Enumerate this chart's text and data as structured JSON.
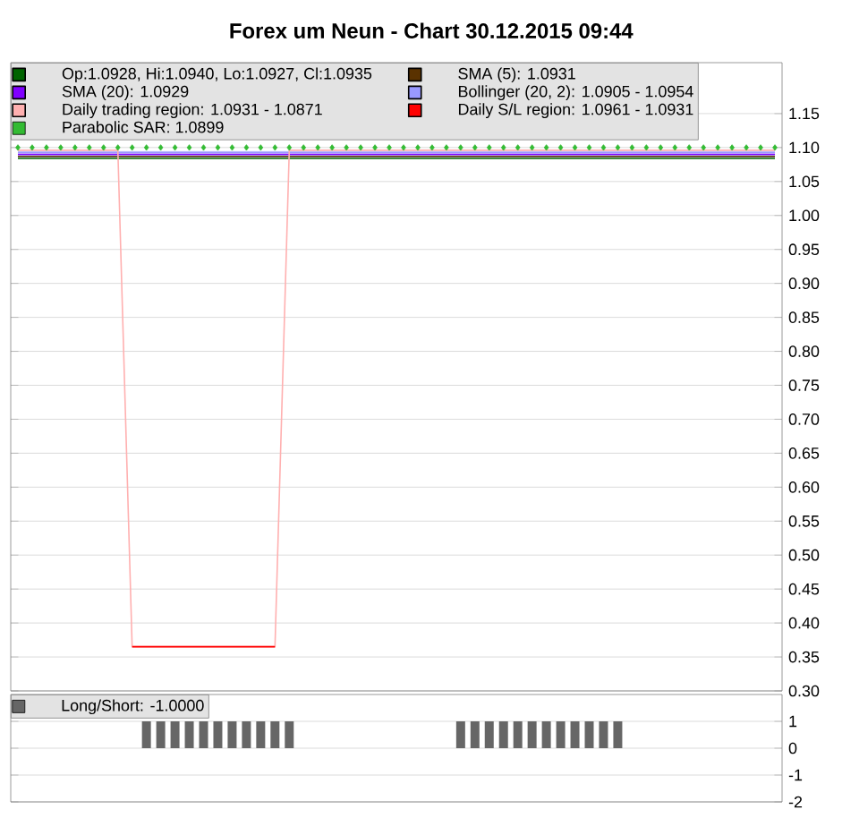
{
  "chart_data": [
    {
      "type": "line",
      "title": "Forex um Neun - Chart 30.12.2015 09:44",
      "categories": [
        null,
        null,
        null,
        null,
        null,
        null,
        null,
        null,
        null,
        null,
        null,
        null,
        null,
        null,
        null,
        null,
        null,
        null,
        null,
        null,
        null,
        null,
        null,
        null,
        null,
        null,
        null,
        null,
        null,
        null,
        null,
        null,
        null,
        null,
        null,
        null,
        null,
        null,
        null,
        null,
        null,
        null,
        null,
        null,
        null,
        null,
        null,
        null,
        null,
        null,
        null,
        null,
        null,
        null
      ],
      "series": [
        {
          "name": "Op:1.0928, Hi:1.0940, Lo:1.0927, Cl:1.0935",
          "color": "#006400",
          "values": [
            1.084,
            1.084,
            1.084,
            1.084,
            1.084,
            1.084,
            1.084,
            1.084,
            1.084,
            1.084,
            1.084,
            1.084,
            1.084,
            1.084,
            1.084,
            1.084,
            1.084,
            1.084,
            1.084,
            1.084,
            1.084,
            1.084,
            1.084,
            1.084,
            1.084,
            1.084,
            1.084,
            1.084,
            1.084,
            1.084,
            1.084,
            1.084,
            1.084,
            1.084,
            1.084,
            1.084,
            1.084,
            1.084,
            1.084,
            1.084,
            1.084,
            1.084,
            1.084,
            1.084,
            1.084,
            1.084,
            1.084,
            1.084,
            1.084,
            1.084,
            1.084,
            1.084,
            1.084,
            1.084
          ]
        },
        {
          "name": "SMA (5): 1.0931",
          "color": "#5a3200",
          "values": [
            1.087,
            1.087,
            1.087,
            1.087,
            1.087,
            1.087,
            1.087,
            1.087,
            1.087,
            1.087,
            1.087,
            1.087,
            1.087,
            1.087,
            1.087,
            1.087,
            1.087,
            1.087,
            1.087,
            1.087,
            1.087,
            1.087,
            1.087,
            1.087,
            1.087,
            1.087,
            1.087,
            1.087,
            1.087,
            1.087,
            1.087,
            1.087,
            1.087,
            1.087,
            1.087,
            1.087,
            1.087,
            1.087,
            1.087,
            1.087,
            1.087,
            1.087,
            1.087,
            1.087,
            1.087,
            1.087,
            1.087,
            1.087,
            1.087,
            1.087,
            1.087,
            1.087,
            1.087,
            1.087
          ]
        },
        {
          "name": "SMA (20): 1.0929",
          "color": "#8000ff",
          "values": [
            1.09,
            1.09,
            1.09,
            1.09,
            1.09,
            1.09,
            1.09,
            1.09,
            1.09,
            1.09,
            1.09,
            1.09,
            1.09,
            1.09,
            1.09,
            1.09,
            1.09,
            1.09,
            1.09,
            1.09,
            1.09,
            1.09,
            1.09,
            1.09,
            1.09,
            1.09,
            1.09,
            1.09,
            1.09,
            1.09,
            1.09,
            1.09,
            1.09,
            1.09,
            1.09,
            1.09,
            1.09,
            1.09,
            1.09,
            1.09,
            1.09,
            1.09,
            1.09,
            1.09,
            1.09,
            1.09,
            1.09,
            1.09,
            1.09,
            1.09,
            1.09,
            1.09,
            1.09,
            1.09
          ]
        },
        {
          "name": "Bollinger (20, 2): 1.0905 - 1.0954",
          "color": "#9999ff",
          "values": [
            1.093,
            1.093,
            1.093,
            1.093,
            1.093,
            1.093,
            1.093,
            1.093,
            1.093,
            1.093,
            1.093,
            1.093,
            1.093,
            1.093,
            1.093,
            1.093,
            1.093,
            1.093,
            1.093,
            1.093,
            1.093,
            1.093,
            1.093,
            1.093,
            1.093,
            1.093,
            1.093,
            1.093,
            1.093,
            1.093,
            1.093,
            1.093,
            1.093,
            1.093,
            1.093,
            1.093,
            1.093,
            1.093,
            1.093,
            1.093,
            1.093,
            1.093,
            1.093,
            1.093,
            1.093,
            1.093,
            1.093,
            1.093,
            1.093,
            1.093,
            1.093,
            1.093,
            1.093,
            1.093
          ],
          "lower": [
            1.085,
            1.085,
            1.085,
            1.085,
            1.085,
            1.085,
            1.085,
            1.085,
            1.085,
            1.085,
            1.085,
            1.085,
            1.085,
            1.085,
            1.085,
            1.085,
            1.085,
            1.085,
            1.085,
            1.085,
            1.085,
            1.085,
            1.085,
            1.085,
            1.085,
            1.085,
            1.085,
            1.085,
            1.085,
            1.085,
            1.085,
            1.085,
            1.085,
            1.085,
            1.085,
            1.085,
            1.085,
            1.085,
            1.085,
            1.085,
            1.085,
            1.085,
            1.085,
            1.085,
            1.085,
            1.085,
            1.085,
            1.085,
            1.085,
            1.085,
            1.085,
            1.085,
            1.085,
            1.085
          ],
          "upper": [
            1.095,
            1.095,
            1.095,
            1.095,
            1.095,
            1.095,
            1.095,
            1.095,
            1.095,
            1.095,
            1.095,
            1.095,
            1.095,
            1.095,
            1.095,
            1.095,
            1.095,
            1.095,
            1.095,
            1.095,
            1.095,
            1.095,
            1.095,
            1.095,
            1.095,
            1.095,
            1.095,
            1.095,
            1.095,
            1.095,
            1.095,
            1.095,
            1.095,
            1.095,
            1.095,
            1.095,
            1.095,
            1.095,
            1.095,
            1.095,
            1.095,
            1.095,
            1.095,
            1.095,
            1.095,
            1.095,
            1.095,
            1.095,
            1.095,
            1.095,
            1.095,
            1.095,
            1.095,
            1.095
          ]
        },
        {
          "name": "Daily trading region: 1.0931 - 1.0871",
          "color": "#ffb0b0",
          "values": [
            1.096,
            1.096,
            1.096,
            1.096,
            1.096,
            1.096,
            1.096,
            1.096,
            0.365,
            0.365,
            0.365,
            0.365,
            0.365,
            0.365,
            0.365,
            0.365,
            0.365,
            0.365,
            0.365,
            1.096,
            1.096,
            1.096,
            1.096,
            1.096,
            1.096,
            1.096,
            1.096,
            1.096,
            1.096,
            1.096,
            1.096,
            1.096,
            1.096,
            1.096,
            1.096,
            1.096,
            1.096,
            1.096,
            1.096,
            1.096,
            1.096,
            1.096,
            1.096,
            1.096,
            1.096,
            1.096,
            1.096,
            1.096,
            1.096,
            1.096,
            1.096,
            1.096,
            1.096,
            1.096
          ]
        },
        {
          "name": "Daily S/L region: 1.0961 - 1.0931",
          "color": "#ff0000",
          "values": [
            null,
            null,
            null,
            null,
            null,
            null,
            null,
            null,
            0.365,
            0.365,
            0.365,
            0.365,
            0.365,
            0.365,
            0.365,
            0.365,
            0.365,
            0.365,
            0.365,
            null,
            null,
            null,
            null,
            null,
            null,
            null,
            null,
            null,
            null,
            null,
            null,
            null,
            null,
            null,
            null,
            null,
            null,
            null,
            null,
            null,
            null,
            null,
            null,
            null,
            null,
            null,
            null,
            null,
            null,
            null,
            null,
            null,
            null,
            null
          ]
        },
        {
          "name": "Parabolic SAR: 1.0899",
          "color": "#33bb33",
          "type": "scatter",
          "marker": "diamond",
          "values": [
            1.1,
            1.1,
            1.1,
            1.1,
            1.1,
            1.1,
            1.1,
            1.1,
            1.1,
            1.1,
            1.1,
            1.1,
            1.1,
            1.1,
            1.1,
            1.1,
            1.1,
            1.1,
            1.1,
            1.1,
            1.1,
            1.1,
            1.1,
            1.1,
            1.1,
            1.1,
            1.1,
            1.1,
            1.1,
            1.1,
            1.1,
            1.1,
            1.1,
            1.1,
            1.1,
            1.1,
            1.1,
            1.1,
            1.1,
            1.1,
            1.1,
            1.1,
            1.1,
            1.1,
            1.1,
            1.1,
            1.1,
            1.1,
            1.1,
            1.1,
            1.1,
            1.1,
            1.1,
            1.1
          ]
        }
      ],
      "ylim": [
        0.3,
        1.225
      ],
      "yticks": [
        {
          "value": 0.3,
          "label": "0.30"
        },
        0.35,
        {
          "value": 0.4,
          "label": "0.40"
        },
        0.45,
        {
          "value": 0.5,
          "label": "0.50"
        },
        0.55,
        {
          "value": 0.6,
          "label": "0.60"
        },
        0.65,
        {
          "value": 0.7,
          "label": "0.70"
        },
        0.75,
        {
          "value": 0.8,
          "label": "0.80"
        },
        0.85,
        {
          "value": 0.9,
          "label": "0.90"
        },
        0.95,
        {
          "value": 1.0,
          "label": "1.00"
        },
        1.05,
        {
          "value": 1.1,
          "label": "1.10"
        },
        1.15
      ],
      "grid": "y",
      "legend": "top left",
      "tick_labels": "y"
    },
    {
      "type": "bar",
      "categories": [
        null,
        null,
        null,
        null,
        null,
        null,
        null,
        null,
        null,
        null,
        null,
        null,
        null,
        null,
        null,
        null,
        null,
        null,
        null,
        null,
        null,
        null,
        null,
        null,
        null,
        null,
        null,
        null,
        null,
        null,
        null,
        null,
        null,
        null,
        null,
        null,
        null,
        null,
        null,
        null,
        null,
        null,
        null,
        null,
        null,
        null,
        null,
        null,
        null,
        null,
        null,
        null,
        null,
        null
      ],
      "series": [
        {
          "name": "Long/Short: -1.0000",
          "color": "#666666",
          "values": [
            0,
            0,
            0,
            0,
            0,
            0,
            0,
            0,
            0,
            1,
            1,
            1,
            1,
            1,
            1,
            1,
            1,
            1,
            1,
            1,
            0,
            0,
            0,
            0,
            0,
            0,
            0,
            0,
            0,
            0,
            0,
            1,
            1,
            1,
            1,
            1,
            1,
            1,
            1,
            1,
            1,
            1,
            1,
            0,
            0,
            0,
            0,
            0,
            0,
            0,
            0,
            0,
            0,
            0
          ]
        }
      ],
      "ylim": [
        -2,
        2
      ],
      "yticks": [
        -2,
        -1,
        0,
        1
      ],
      "grid": "y",
      "legend": "top left",
      "tick_labels": "y"
    }
  ]
}
